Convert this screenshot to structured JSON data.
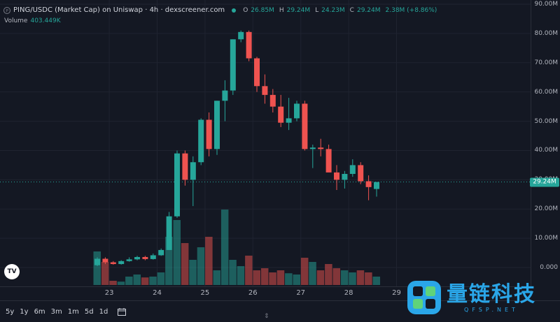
{
  "header": {
    "title": "PING/USDC (Market Cap) on Uniswap · 4h · dexscreener.com",
    "ohlc": [
      {
        "label": "O",
        "value": "26.85M"
      },
      {
        "label": "H",
        "value": "29.24M"
      },
      {
        "label": "L",
        "value": "24.23M"
      },
      {
        "label": "C",
        "value": "29.24M"
      }
    ],
    "change": "2.38M (+8.86%)"
  },
  "volume_legend": {
    "label": "Volume",
    "value": "403.449K"
  },
  "current_price_label": "29.24M",
  "logo_text": "TV",
  "range_buttons": [
    "5y",
    "1y",
    "6m",
    "3m",
    "1m",
    "5d",
    "1d"
  ],
  "watermark": {
    "title": "量链科技",
    "subtitle": "QFSP.NET"
  },
  "colors": {
    "up": "#26a69a",
    "down": "#ef5350",
    "background": "#141823",
    "grid": "#1f2330"
  },
  "chart_data": {
    "type": "candlestick",
    "y_unit": "M",
    "ylim": [
      -5,
      90
    ],
    "yticks": [
      {
        "value": 90,
        "label": "90.00M"
      },
      {
        "value": 80,
        "label": "80.00M"
      },
      {
        "value": 70,
        "label": "70.00M"
      },
      {
        "value": 60,
        "label": "60.00M"
      },
      {
        "value": 50,
        "label": "50.00M"
      },
      {
        "value": 40,
        "label": "40.00M"
      },
      {
        "value": 30,
        "label": "30.00M"
      },
      {
        "value": 20,
        "label": "20.00M"
      },
      {
        "value": 10,
        "label": "10.00M"
      },
      {
        "value": 0,
        "label": "0.000"
      }
    ],
    "xticks": [
      {
        "index": 1.5,
        "label": "23"
      },
      {
        "index": 7.5,
        "label": "24"
      },
      {
        "index": 13.5,
        "label": "25"
      },
      {
        "index": 19.5,
        "label": "26"
      },
      {
        "index": 25.5,
        "label": "27"
      },
      {
        "index": 31.5,
        "label": "28"
      },
      {
        "index": 37.5,
        "label": "29"
      }
    ],
    "last_price": 29.24,
    "candles": [
      {
        "o": 0.8,
        "h": 3.5,
        "l": 0.5,
        "c": 3.0,
        "v": 0.8
      },
      {
        "o": 3.0,
        "h": 3.5,
        "l": 1.2,
        "c": 1.8,
        "v": 0.55
      },
      {
        "o": 1.8,
        "h": 2.2,
        "l": 1.0,
        "c": 1.2,
        "v": 0.1
      },
      {
        "o": 1.2,
        "h": 2.5,
        "l": 1.0,
        "c": 2.2,
        "v": 0.08
      },
      {
        "o": 2.2,
        "h": 3.5,
        "l": 2.0,
        "c": 2.8,
        "v": 0.2
      },
      {
        "o": 2.8,
        "h": 4.0,
        "l": 2.5,
        "c": 3.6,
        "v": 0.25
      },
      {
        "o": 3.6,
        "h": 4.0,
        "l": 2.5,
        "c": 2.9,
        "v": 0.18
      },
      {
        "o": 2.9,
        "h": 4.8,
        "l": 2.7,
        "c": 4.2,
        "v": 0.2
      },
      {
        "o": 4.2,
        "h": 6.5,
        "l": 4.0,
        "c": 6.0,
        "v": 0.3
      },
      {
        "o": 6.0,
        "h": 19.0,
        "l": 6.0,
        "c": 17.5,
        "v": 1.15
      },
      {
        "o": 17.5,
        "h": 40.0,
        "l": 17.0,
        "c": 39.0,
        "v": 1.55
      },
      {
        "o": 39.0,
        "h": 40.0,
        "l": 28.0,
        "c": 30.0,
        "v": 1.0
      },
      {
        "o": 30.0,
        "h": 38.0,
        "l": 21.0,
        "c": 36.0,
        "v": 0.6
      },
      {
        "o": 36.0,
        "h": 51.0,
        "l": 35.0,
        "c": 50.5,
        "v": 0.9
      },
      {
        "o": 50.5,
        "h": 53.0,
        "l": 38.0,
        "c": 40.5,
        "v": 1.15
      },
      {
        "o": 40.5,
        "h": 57.0,
        "l": 38.5,
        "c": 57.0,
        "v": 0.35
      },
      {
        "o": 57.0,
        "h": 64.0,
        "l": 50.0,
        "c": 60.5,
        "v": 1.8
      },
      {
        "o": 60.5,
        "h": 78.0,
        "l": 59.0,
        "c": 78.0,
        "v": 0.6
      },
      {
        "o": 78.0,
        "h": 81.0,
        "l": 77.0,
        "c": 80.5,
        "v": 0.45
      },
      {
        "o": 80.5,
        "h": 81.0,
        "l": 70.5,
        "c": 71.5,
        "v": 0.7
      },
      {
        "o": 71.5,
        "h": 72.0,
        "l": 60.0,
        "c": 62.0,
        "v": 0.35
      },
      {
        "o": 62.0,
        "h": 66.0,
        "l": 56.0,
        "c": 59.0,
        "v": 0.4
      },
      {
        "o": 59.0,
        "h": 61.0,
        "l": 53.0,
        "c": 55.0,
        "v": 0.3
      },
      {
        "o": 55.0,
        "h": 59.0,
        "l": 48.0,
        "c": 49.5,
        "v": 0.35
      },
      {
        "o": 49.5,
        "h": 58.0,
        "l": 47.0,
        "c": 51.0,
        "v": 0.28
      },
      {
        "o": 51.0,
        "h": 57.0,
        "l": 50.0,
        "c": 56.0,
        "v": 0.25
      },
      {
        "o": 56.0,
        "h": 57.0,
        "l": 40.0,
        "c": 40.5,
        "v": 0.65
      },
      {
        "o": 40.5,
        "h": 42.0,
        "l": 34.0,
        "c": 41.0,
        "v": 0.55
      },
      {
        "o": 41.0,
        "h": 44.0,
        "l": 38.0,
        "c": 40.5,
        "v": 0.35
      },
      {
        "o": 40.5,
        "h": 42.0,
        "l": 33.0,
        "c": 32.5,
        "v": 0.5
      },
      {
        "o": 32.5,
        "h": 35.0,
        "l": 26.5,
        "c": 30.0,
        "v": 0.4
      },
      {
        "o": 30.0,
        "h": 33.0,
        "l": 27.0,
        "c": 32.0,
        "v": 0.35
      },
      {
        "o": 32.0,
        "h": 37.0,
        "l": 31.0,
        "c": 35.0,
        "v": 0.3
      },
      {
        "o": 35.0,
        "h": 36.0,
        "l": 28.5,
        "c": 29.5,
        "v": 0.35
      },
      {
        "o": 29.5,
        "h": 31.5,
        "l": 23.0,
        "c": 27.5,
        "v": 0.3
      },
      {
        "o": 26.85,
        "h": 29.24,
        "l": 24.23,
        "c": 29.24,
        "v": 0.2
      }
    ]
  }
}
